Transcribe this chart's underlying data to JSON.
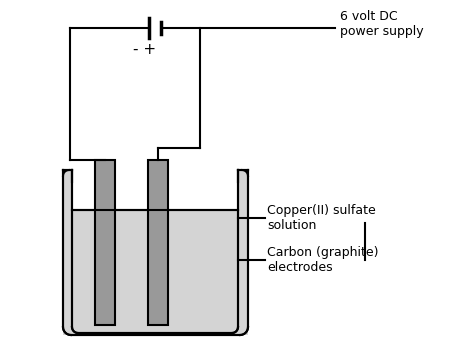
{
  "bg_color": "#ffffff",
  "line_color": "#000000",
  "gray_light": "#d4d4d4",
  "gray_mid": "#999999",
  "label_battery": "6 volt DC\npower supply",
  "label_solution": "Copper(II) sulfate\nsolution",
  "label_electrodes": "Carbon (graphite)\nelectrodes",
  "minus_label": "- +",
  "font_size_label": 9,
  "font_size_pm": 11
}
